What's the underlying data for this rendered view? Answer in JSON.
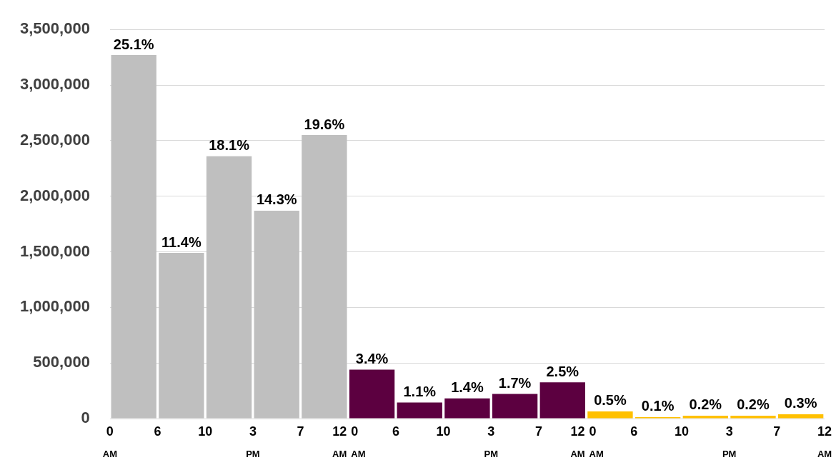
{
  "chart_data": {
    "type": "bar",
    "categories": [
      null,
      null,
      null,
      null,
      null,
      null,
      null,
      null,
      null,
      null,
      null,
      null,
      null,
      null,
      null
    ],
    "values": [
      3270000,
      1490000,
      2360000,
      1870000,
      2550000,
      440000,
      145000,
      182000,
      222000,
      326000,
      65000,
      13000,
      26000,
      26000,
      39000
    ],
    "colors": [
      "#bfbfbf",
      "#bfbfbf",
      "#bfbfbf",
      "#bfbfbf",
      "#bfbfbf",
      "#5c0040",
      "#5c0040",
      "#5c0040",
      "#5c0040",
      "#5c0040",
      "#ffc000",
      "#ffc000",
      "#ffc000",
      "#ffc000",
      "#ffc000"
    ],
    "ylim": [
      0,
      3500000
    ],
    "yticks": [
      {
        "value": 0,
        "label": "0"
      },
      {
        "value": 500000,
        "label": "500,000"
      },
      {
        "value": 1000000,
        "label": "1,000,000"
      },
      {
        "value": 1500000,
        "label": "1,500,000"
      },
      {
        "value": 2000000,
        "label": "2,000,000"
      },
      {
        "value": 2500000,
        "label": "2,500,000"
      },
      {
        "value": 3000000,
        "label": "3,000,000"
      },
      {
        "value": 3500000,
        "label": "3,500,000"
      }
    ],
    "grid": "y",
    "tick_labels": "y",
    "annotations": [
      {
        "text": "25.1%",
        "y": 3270000
      },
      {
        "text": "11.4%",
        "y": 1490000
      },
      {
        "text": "18.1%",
        "y": 2360000
      },
      {
        "text": "14.3%",
        "y": 1870000
      },
      {
        "text": "19.6%",
        "y": 2550000
      },
      {
        "text": "3.4%",
        "y": 440000
      },
      {
        "text": "1.1%",
        "y": 145000
      },
      {
        "text": "1.4%",
        "y": 182000
      },
      {
        "text": "1.7%",
        "y": 222000
      },
      {
        "text": "2.5%",
        "y": 326000
      },
      {
        "text": "0.5%",
        "y": 65000
      },
      {
        "text": "0.1%",
        "y": 13000
      },
      {
        "text": "0.2%",
        "y": 26000
      },
      {
        "text": "0.2%",
        "y": 26000
      },
      {
        "text": "0.3%",
        "y": 39000
      },
      "0\nAM",
      "6",
      "10",
      "3\nPM",
      "7",
      "12\nAM",
      "0\nAM",
      "6",
      "10",
      "3\nPM",
      "7",
      "12\nAM",
      "0\nAM",
      "6",
      "10",
      "3\nPM",
      "7",
      "12\nAM"
    ]
  }
}
